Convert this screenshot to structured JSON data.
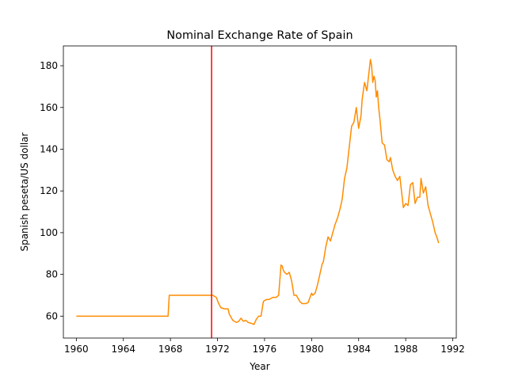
{
  "chart_data": {
    "type": "line",
    "title": "Nominal Exchange Rate of Spain",
    "xlabel": "Year",
    "ylabel": "Spanish peseta/US dollar",
    "xlim": [
      1958.9,
      1992.3
    ],
    "ylim": [
      49.5,
      189.5
    ],
    "xticks": [
      1960,
      1964,
      1968,
      1972,
      1976,
      1980,
      1984,
      1988,
      1992
    ],
    "yticks": [
      60,
      80,
      100,
      120,
      140,
      160,
      180
    ],
    "grid": false,
    "legend": "none",
    "line_color": "#ff8c00",
    "vline": {
      "x": 1971.5,
      "color": "#ff0000"
    },
    "series": [
      {
        "x": [
          1960.0,
          1967.8,
          1967.9,
          1971.6,
          1971.9,
          1972.1,
          1972.3,
          1972.6,
          1972.9,
          1973.0,
          1973.3,
          1973.6,
          1973.8,
          1974.0,
          1974.2,
          1974.4,
          1974.6,
          1974.9,
          1975.1,
          1975.3,
          1975.5,
          1975.7,
          1975.9,
          1976.0,
          1976.2,
          1976.4,
          1976.7,
          1977.0,
          1977.2,
          1977.4,
          1977.5,
          1977.6,
          1977.7,
          1977.9,
          1978.1,
          1978.3,
          1978.5,
          1978.7,
          1979.0,
          1979.2,
          1979.5,
          1979.7,
          1980.0,
          1980.1,
          1980.3,
          1980.5,
          1980.7,
          1980.9,
          1981.0,
          1981.2,
          1981.4,
          1981.6,
          1981.8,
          1982.0,
          1982.2,
          1982.4,
          1982.6,
          1982.8,
          1983.0,
          1983.2,
          1983.4,
          1983.6,
          1983.8,
          1984.0,
          1984.2,
          1984.3,
          1984.5,
          1984.7,
          1984.9,
          1985.0,
          1985.1,
          1985.2,
          1985.3,
          1985.4,
          1985.5,
          1985.6,
          1985.7,
          1985.8,
          1986.0,
          1986.2,
          1986.4,
          1986.6,
          1986.7,
          1986.9,
          1987.1,
          1987.3,
          1987.5,
          1987.6,
          1987.8,
          1988.0,
          1988.2,
          1988.4,
          1988.6,
          1988.8,
          1989.0,
          1989.2,
          1989.3,
          1989.5,
          1989.7,
          1989.9,
          1990.1,
          1990.3,
          1990.5,
          1990.7,
          1990.8
        ],
        "y": [
          60,
          60,
          70,
          70,
          69,
          66,
          64,
          63.5,
          63.5,
          61,
          58,
          57,
          57.5,
          59,
          57.5,
          58,
          57,
          56.5,
          56,
          58.5,
          60,
          60,
          67,
          67.5,
          68,
          68,
          69,
          69,
          70,
          84.5,
          84,
          82,
          81,
          80,
          81,
          77,
          70,
          70,
          67,
          66,
          66,
          66.5,
          71,
          70,
          71,
          75,
          80,
          85,
          86,
          93,
          98,
          96,
          100,
          104,
          107,
          111,
          116,
          126,
          131,
          141,
          151,
          153,
          160,
          150,
          156,
          164,
          172,
          168,
          178,
          183,
          180,
          172,
          175,
          173,
          165,
          168,
          160,
          155,
          143,
          142,
          135,
          134,
          136,
          130,
          127,
          125,
          127,
          122,
          112,
          114,
          113,
          123,
          124,
          114,
          117,
          117,
          126,
          119,
          122,
          113,
          109,
          105,
          100,
          97,
          95
        ]
      }
    ]
  }
}
